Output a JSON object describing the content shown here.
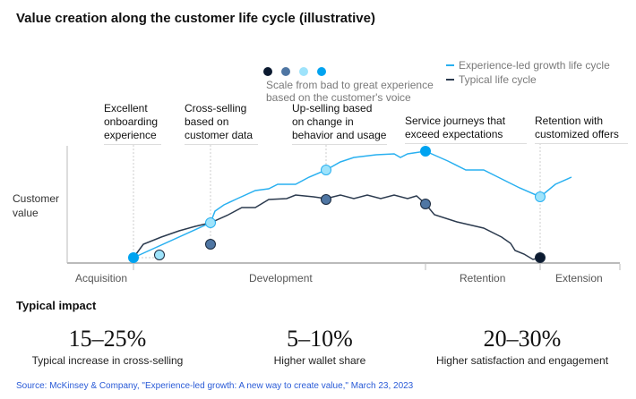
{
  "title": "Value creation along the customer life cycle (illustrative)",
  "legend": {
    "scale_colors": [
      "#0b1a30",
      "#4f76a3",
      "#9ee3fb",
      "#00a3f0"
    ],
    "scale_text_1": "Scale from bad to great experience",
    "scale_text_2": "based on the customer's voice",
    "series": [
      {
        "label": "Experience-led growth life cycle",
        "color": "#29b0f0"
      },
      {
        "label": "Typical life cycle",
        "color": "#2b3a4e"
      }
    ]
  },
  "y_label": "Customer value",
  "annotations": [
    "Excellent onboarding experience",
    "Cross-selling based on customer data",
    "Up-selling based on change in behavior and usage",
    "Service journeys that exceed expectations",
    "Retention with customized offers"
  ],
  "phases": [
    "Acquisition",
    "Development",
    "Retention",
    "Extension"
  ],
  "impact": {
    "heading": "Typical impact",
    "stats": [
      {
        "value": "15–25%",
        "label": "Typical increase in cross-selling"
      },
      {
        "value": "5–10%",
        "label": "Higher wallet share"
      },
      {
        "value": "20–30%",
        "label": "Higher satisfaction and engagement"
      }
    ]
  },
  "source": "Source: McKinsey & Company, \"Experience-led growth: A new way to create value,\" March 23, 2023"
}
